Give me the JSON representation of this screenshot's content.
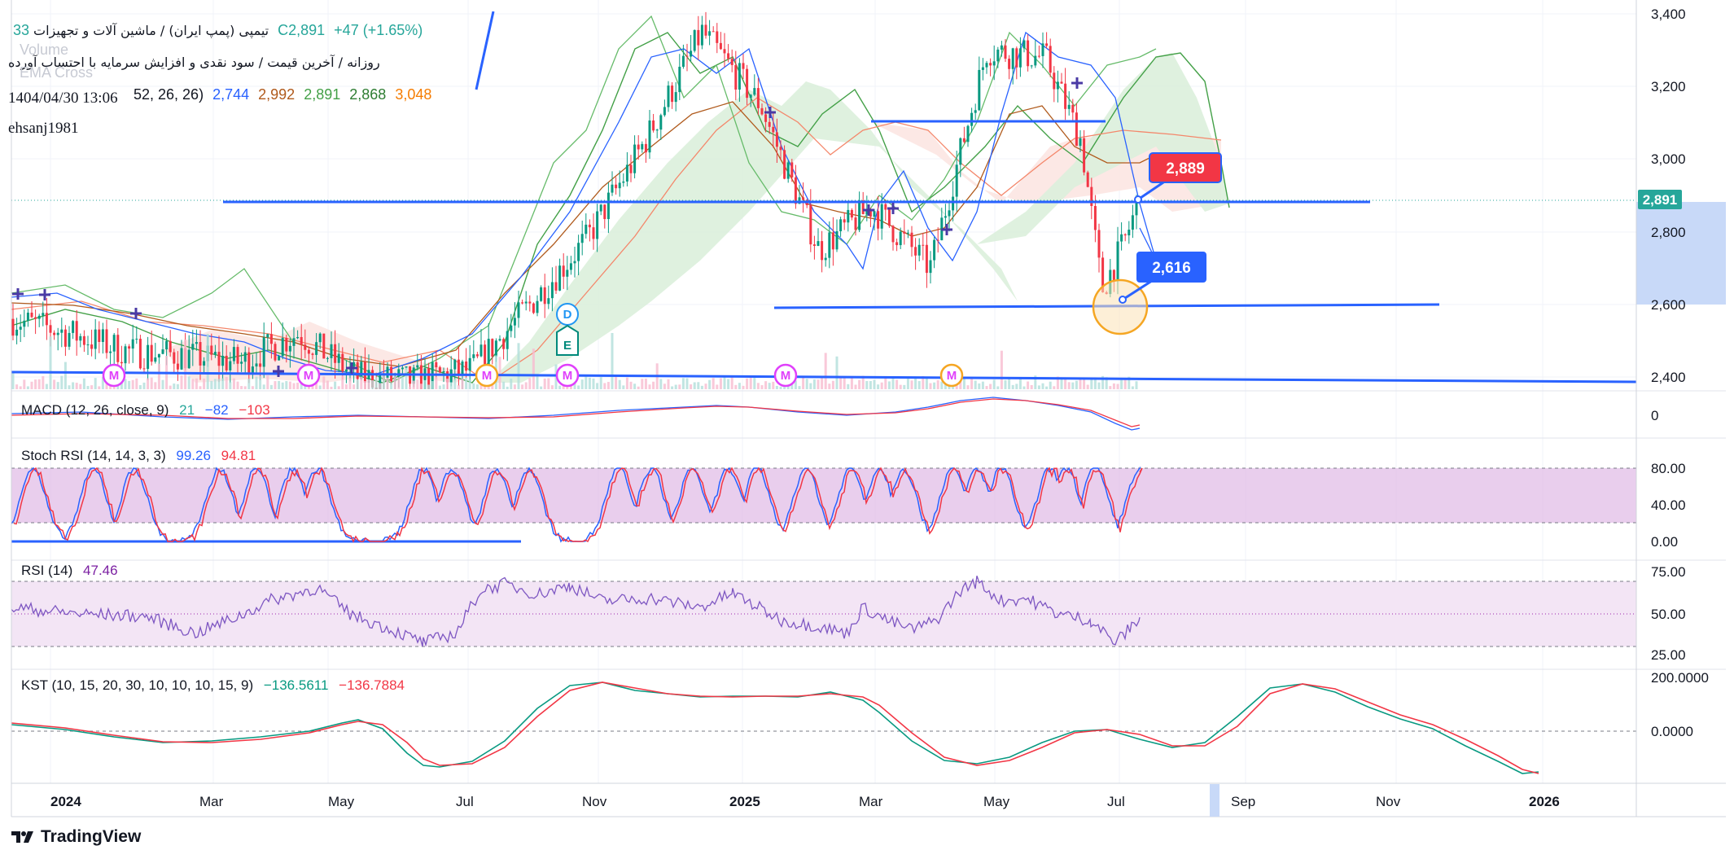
{
  "header": {
    "symbol_title": "تیمپی (پمپ ایران) / ماشین آلات و تجهیزات",
    "last_price": "C2,891",
    "change": "+47 (+1.65%)",
    "partial_value": "33",
    "subtitle": "روزانه / آخرین قیمت / سود نقدی و افزایش سرمایه با احتساب آورده",
    "timestamp": "1404/04/30 13:06",
    "author": "ehsanj1981",
    "ghost_volume": "Volume",
    "ghost_ema": "EMA Cross",
    "ichimoku_params": "52, 26, 26)",
    "ichimoku_values": [
      "2,744",
      "2,992",
      "2,891",
      "2,868",
      "3,048"
    ],
    "ichimoku_colors": [
      "#2962ff",
      "#b05a1c",
      "#43a047",
      "#2e7d32",
      "#f57c00"
    ]
  },
  "callouts": {
    "high": {
      "value": "2,889",
      "color": "#f23645"
    },
    "low": {
      "value": "2,616",
      "color": "#2962ff"
    }
  },
  "event_markers": {
    "m": "M",
    "d": "D",
    "e": "E"
  },
  "price_pane": {
    "axis_ticks": [
      "3,400",
      "3,200",
      "3,000",
      "2,800",
      "2,600",
      "2,400"
    ],
    "current_price_label": "2,891",
    "price_range": [
      2380,
      3430
    ]
  },
  "macd": {
    "params": "MACD (12, 26, close, 9)",
    "v1": "21",
    "v2": "−82",
    "v3": "−103",
    "axis_ticks": [
      "0"
    ]
  },
  "stoch_rsi": {
    "params": "Stoch RSI (14, 14, 3, 3)",
    "k": "99.26",
    "d": "94.81",
    "axis_ticks": [
      "80.00",
      "40.00",
      "0.00"
    ]
  },
  "rsi": {
    "params": "RSI (14)",
    "value": "47.46",
    "axis_ticks": [
      "75.00",
      "50.00",
      "25.00"
    ]
  },
  "kst": {
    "params": "KST (10, 15, 20, 30, 10, 10, 10, 15, 9)",
    "kst": "−136.5611",
    "signal": "−136.7884",
    "axis_ticks": [
      "200.0000",
      "0.0000"
    ]
  },
  "time_axis": {
    "labels": [
      "2024",
      "Mar",
      "May",
      "Jul",
      "Nov",
      "2025",
      "Mar",
      "May",
      "Jul",
      "Sep",
      "Nov",
      "2026"
    ]
  },
  "branding": {
    "name": "TradingView"
  },
  "chart_data": {
    "type": "line",
    "title": "تیمپی (پمپ ایران) / ماشین آلات و تجهیزات",
    "timeframe": "daily",
    "x_range": [
      "2023-12",
      "2026-02"
    ],
    "y_range": [
      2380,
      3430
    ],
    "last_close": 2891,
    "change": 47,
    "change_pct": 1.65,
    "close_series_approx": [
      {
        "x": "2023-12-01",
        "y": 2560
      },
      {
        "x": "2024-01-01",
        "y": 2520
      },
      {
        "x": "2024-02-01",
        "y": 2470
      },
      {
        "x": "2024-03-01",
        "y": 2460
      },
      {
        "x": "2024-04-01",
        "y": 2440
      },
      {
        "x": "2024-05-01",
        "y": 2520
      },
      {
        "x": "2024-06-01",
        "y": 2400
      },
      {
        "x": "2024-07-01",
        "y": 2390
      },
      {
        "x": "2024-08-01",
        "y": 2420
      },
      {
        "x": "2024-09-01",
        "y": 2600
      },
      {
        "x": "2024-10-01",
        "y": 2780
      },
      {
        "x": "2024-11-01",
        "y": 3050
      },
      {
        "x": "2024-12-01",
        "y": 3350
      },
      {
        "x": "2025-01-01",
        "y": 3150
      },
      {
        "x": "2025-02-01",
        "y": 2750
      },
      {
        "x": "2025-03-01",
        "y": 2870
      },
      {
        "x": "2025-04-01",
        "y": 2700
      },
      {
        "x": "2025-05-01",
        "y": 3300
      },
      {
        "x": "2025-06-01",
        "y": 3280
      },
      {
        "x": "2025-06-20",
        "y": 3050
      },
      {
        "x": "2025-07-01",
        "y": 2640
      },
      {
        "x": "2025-07-12",
        "y": 2760
      },
      {
        "x": "2025-07-21",
        "y": 2891
      }
    ],
    "horizontal_levels": [
      3110,
      2889,
      2616,
      2400
    ],
    "annotations": [
      {
        "label": "2,889",
        "y": 2889
      },
      {
        "label": "2,616",
        "y": 2616
      }
    ],
    "macd": {
      "values": [
        21,
        -82,
        -103
      ],
      "range": [
        -300,
        300
      ]
    },
    "stoch_rsi": {
      "k": 99.26,
      "d": 94.81,
      "range": [
        0,
        100
      ]
    },
    "rsi": {
      "value": 47.46,
      "range": [
        0,
        100
      ],
      "levels": [
        30,
        70,
        50
      ]
    },
    "kst": {
      "kst": -136.5611,
      "signal": -136.7884,
      "range": [
        -250,
        300
      ]
    },
    "grid": true,
    "legend_placement": "top-left"
  }
}
